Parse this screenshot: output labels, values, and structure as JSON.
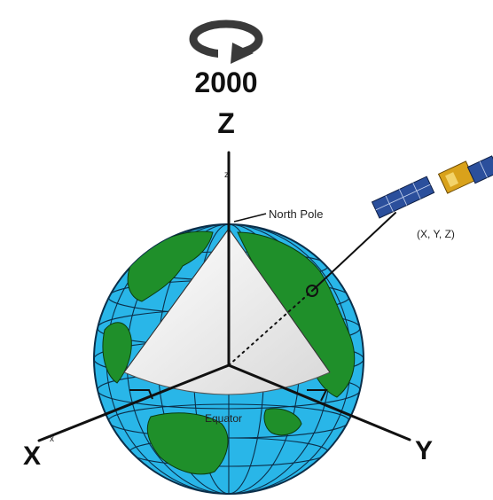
{
  "epoch_label": "2000",
  "axes": {
    "z_label": "Z",
    "x_label": "X",
    "y_label": "Y",
    "z_small": "z",
    "x_small": "x"
  },
  "annotations": {
    "north_pole": "North Pole",
    "equator": "Equator",
    "satellite_position": "(X, Y, Z)"
  },
  "icons": {
    "rotation": "rotation-arrow-icon",
    "satellite": "satellite-icon"
  },
  "colors": {
    "ocean": "#29b6e8",
    "land": "#1f8f2a",
    "land_outline": "#0b3b10",
    "grid": "#0b2f4a",
    "axis": "#111111",
    "cutaway": "#f1f1f1",
    "solar_panel": "#2b4f9c",
    "satellite_body": "#d9a21b"
  }
}
